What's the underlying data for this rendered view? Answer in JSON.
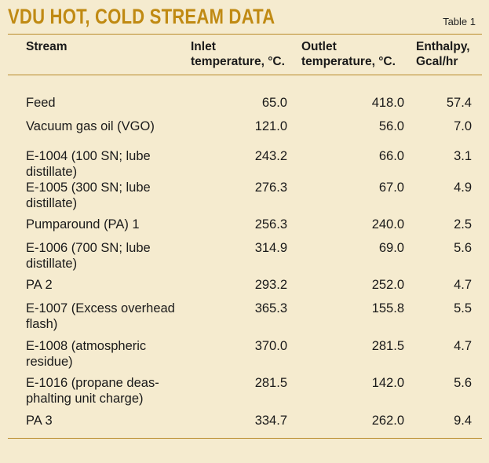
{
  "title": "VDU HOT, COLD STREAM DATA",
  "table_label": "Table 1",
  "columns": {
    "stream": "Stream",
    "inlet": [
      "Inlet",
      "temperature, °C."
    ],
    "outlet": [
      "Outlet",
      "temperature, °C."
    ],
    "enthalpy": [
      "Enthalpy,",
      "Gcal/hr"
    ]
  },
  "rows": [
    {
      "stream": [
        "Feed"
      ],
      "inlet": "65.0",
      "outlet": "418.0",
      "enthalpy": "57.4"
    },
    {
      "stream": [
        "Vacuum gas oil (VGO)"
      ],
      "inlet": "121.0",
      "outlet": "56.0",
      "enthalpy": "7.0"
    },
    {
      "stream": [
        "E-1004 (100 SN; lube",
        "distillate)"
      ],
      "inlet": "243.2",
      "outlet": "66.0",
      "enthalpy": "3.1"
    },
    {
      "stream": [
        "E-1005 (300 SN; lube",
        "distillate)"
      ],
      "inlet": "276.3",
      "outlet": "67.0",
      "enthalpy": "4.9"
    },
    {
      "stream": [
        "Pumparound (PA) 1"
      ],
      "inlet": "256.3",
      "outlet": "240.0",
      "enthalpy": "2.5"
    },
    {
      "stream": [
        "E-1006 (700 SN; lube",
        "distillate)"
      ],
      "inlet": "314.9",
      "outlet": "69.0",
      "enthalpy": "5.6"
    },
    {
      "stream": [
        "PA 2"
      ],
      "inlet": "293.2",
      "outlet": "252.0",
      "enthalpy": "4.7"
    },
    {
      "stream": [
        "E-1007 (Excess overhead",
        "flash)"
      ],
      "inlet": "365.3",
      "outlet": "155.8",
      "enthalpy": "5.5"
    },
    {
      "stream": [
        "E-1008 (atmospheric",
        "residue)"
      ],
      "inlet": "370.0",
      "outlet": "281.5",
      "enthalpy": "4.7"
    },
    {
      "stream": [
        "E-1016 (propane deas-",
        "phalting unit charge)"
      ],
      "inlet": "281.5",
      "outlet": "142.0",
      "enthalpy": "5.6"
    },
    {
      "stream": [
        "PA 3"
      ],
      "inlet": "334.7",
      "outlet": "262.0",
      "enthalpy": "9.4"
    }
  ]
}
